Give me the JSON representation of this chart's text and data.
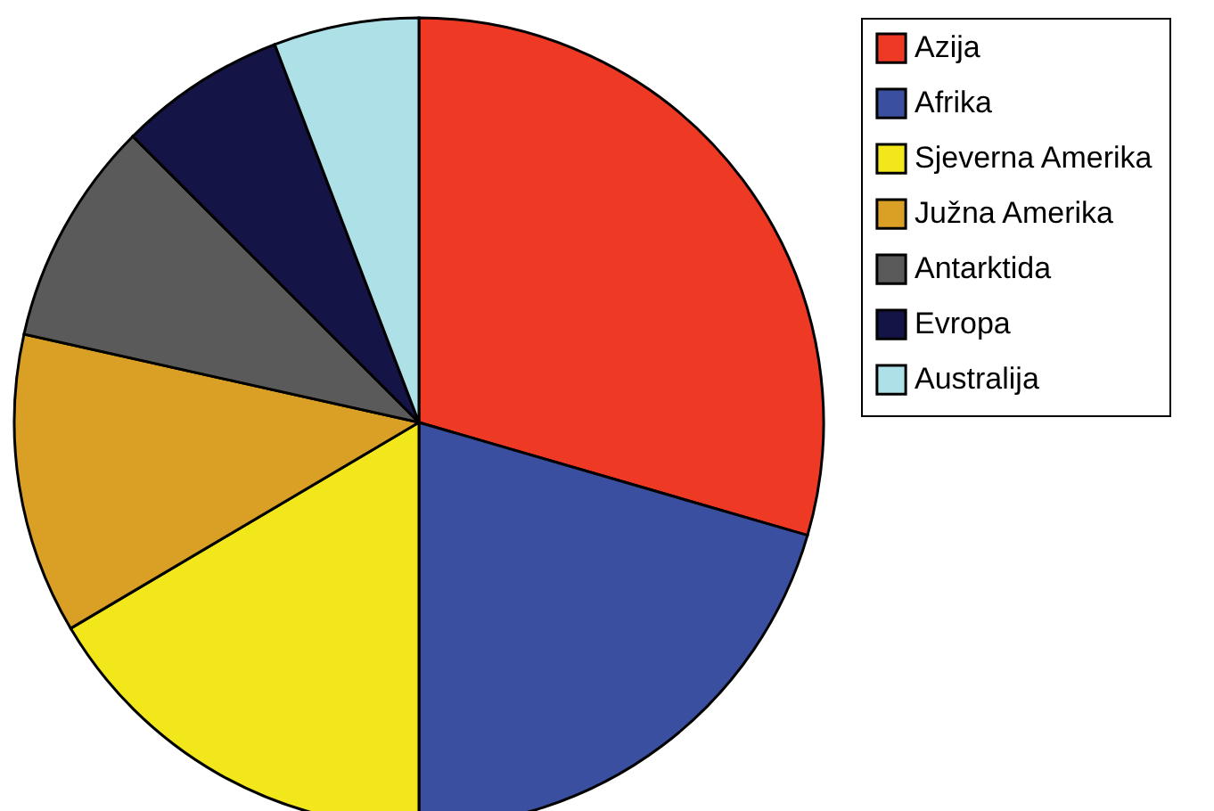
{
  "chart_data": {
    "type": "pie",
    "categories": [
      "Azija",
      "Afrika",
      "Sjeverna Amerika",
      "Južna Amerika",
      "Antarktida",
      "Evropa",
      "Australija"
    ],
    "values": [
      29.5,
      20.5,
      16.5,
      12,
      9,
      6.7,
      5.8
    ],
    "colors": [
      "#ee3a24",
      "#3a4fa0",
      "#f2e71a",
      "#d9a025",
      "#5a5a5a",
      "#141446",
      "#aee0e8"
    ],
    "legend": "top right"
  }
}
